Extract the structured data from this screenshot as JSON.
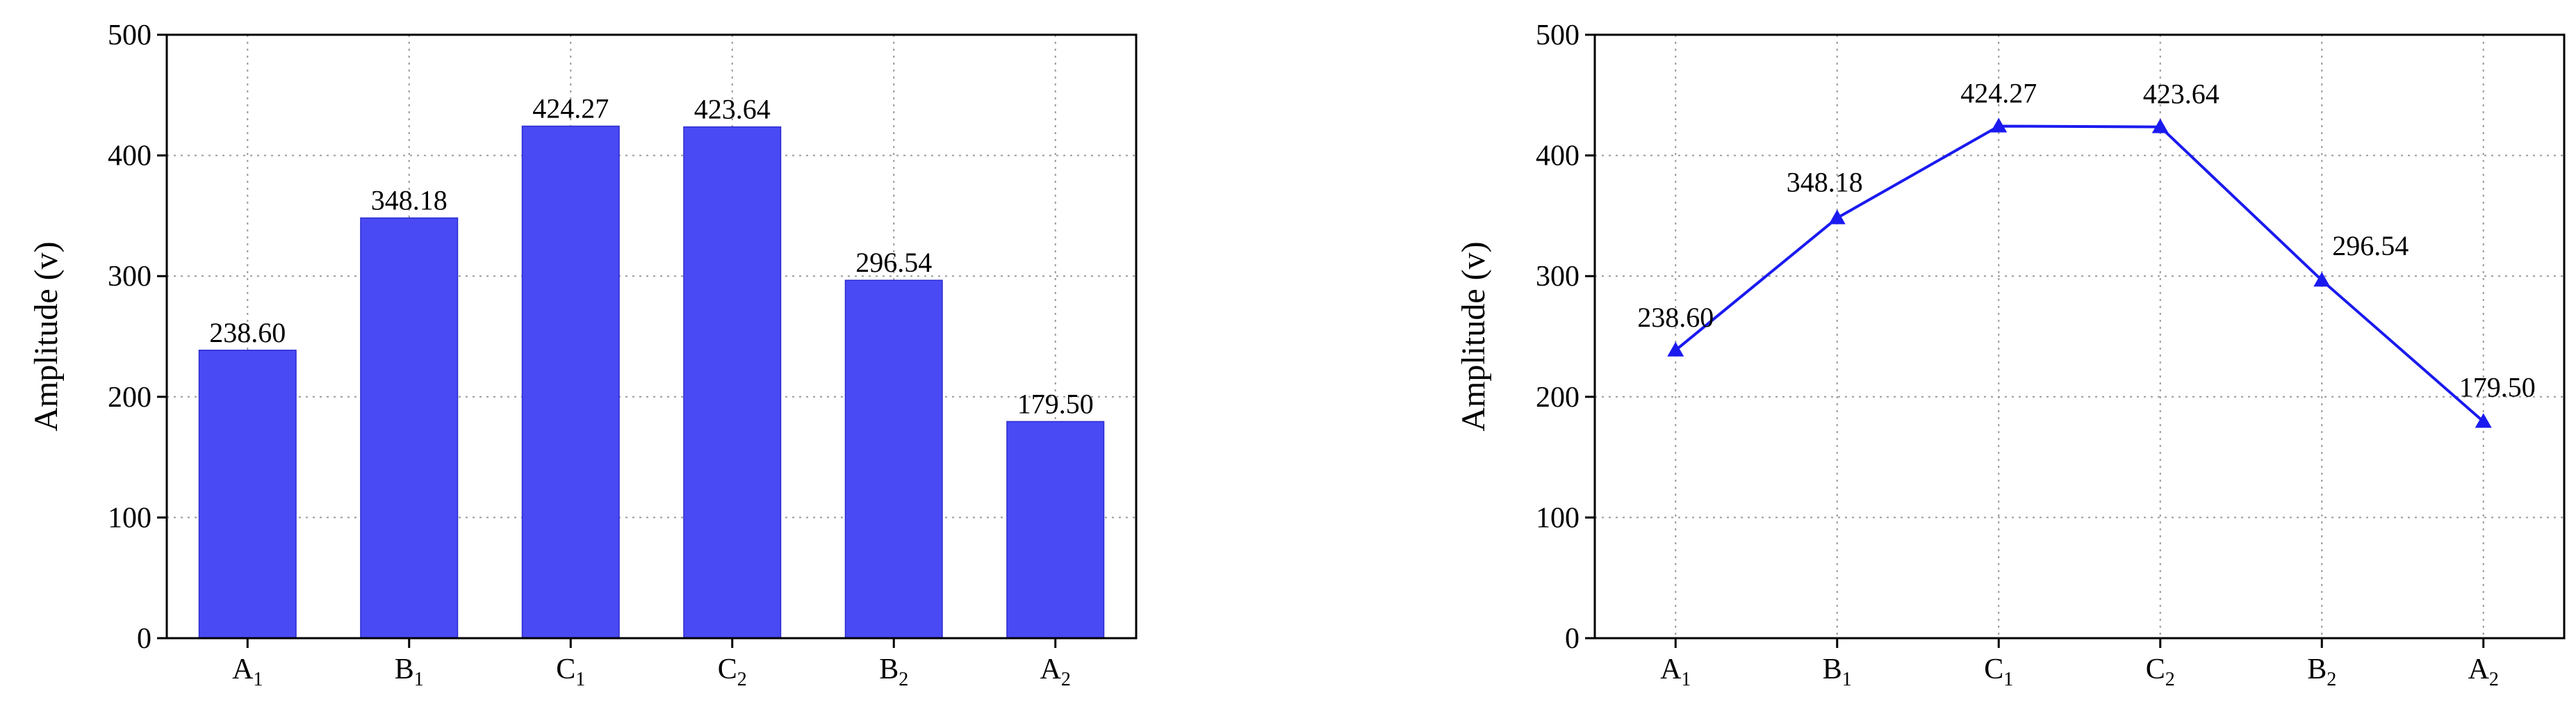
{
  "chart_data": [
    {
      "type": "bar",
      "categories": [
        "A1",
        "B1",
        "C1",
        "C2",
        "B2",
        "A2"
      ],
      "category_labels": [
        {
          "main": "A",
          "sub": "1"
        },
        {
          "main": "B",
          "sub": "1"
        },
        {
          "main": "C",
          "sub": "1"
        },
        {
          "main": "C",
          "sub": "2"
        },
        {
          "main": "B",
          "sub": "2"
        },
        {
          "main": "A",
          "sub": "2"
        }
      ],
      "values": [
        238.6,
        348.18,
        424.27,
        423.64,
        296.54,
        179.5
      ],
      "data_labels": [
        "238.60",
        "348.18",
        "424.27",
        "423.64",
        "296.54",
        "179.50"
      ],
      "ylabel": "Amplitude (v)",
      "ylim": [
        0,
        500
      ],
      "yticks": [
        "0",
        "100",
        "200",
        "300",
        "400",
        "500"
      ],
      "grid": true,
      "color": "#4a4af5"
    },
    {
      "type": "line",
      "marker": "triangle",
      "categories": [
        "A1",
        "B1",
        "C1",
        "C2",
        "B2",
        "A2"
      ],
      "category_labels": [
        {
          "main": "A",
          "sub": "1"
        },
        {
          "main": "B",
          "sub": "1"
        },
        {
          "main": "C",
          "sub": "1"
        },
        {
          "main": "C",
          "sub": "2"
        },
        {
          "main": "B",
          "sub": "2"
        },
        {
          "main": "A",
          "sub": "2"
        }
      ],
      "values": [
        238.6,
        348.18,
        424.27,
        423.64,
        296.54,
        179.5
      ],
      "data_labels": [
        "238.60",
        "348.18",
        "424.27",
        "423.64",
        "296.54",
        "179.50"
      ],
      "ylabel": "Amplitude (v)",
      "ylim": [
        0,
        500
      ],
      "yticks": [
        "0",
        "100",
        "200",
        "300",
        "400",
        "500"
      ],
      "grid": true,
      "color": "#1a1af0"
    }
  ]
}
